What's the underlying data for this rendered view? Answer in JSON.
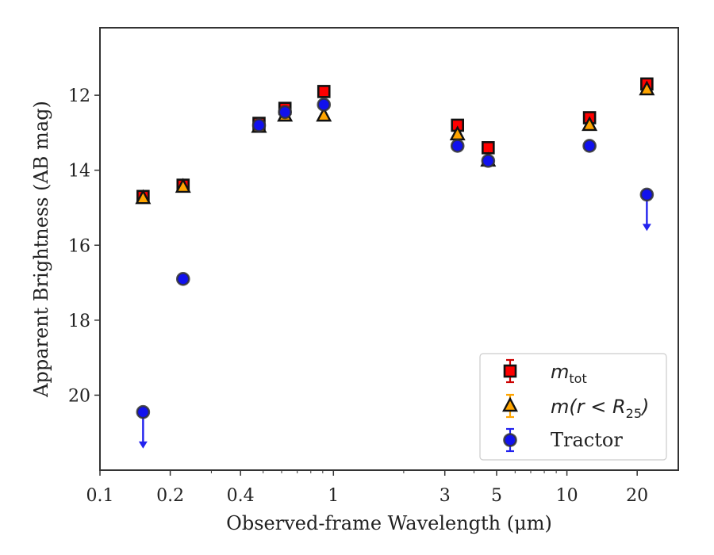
{
  "chart_data": {
    "type": "scatter",
    "xlabel": "Observed-frame Wavelength (μm)",
    "ylabel": "Apparent Brightness (AB mag)",
    "x_scale": "log",
    "y_inverted": true,
    "xlim": [
      0.1,
      30
    ],
    "ylim": [
      22,
      10.2
    ],
    "x_ticks": [
      0.1,
      0.2,
      0.4,
      1,
      3,
      5,
      10,
      20
    ],
    "x_tick_labels": [
      "0.1",
      "0.2",
      "0.4",
      "1",
      "3",
      "5",
      "10",
      "20"
    ],
    "y_ticks": [
      12,
      14,
      16,
      18,
      20
    ],
    "y_tick_labels": [
      "12",
      "14",
      "16",
      "18",
      "20"
    ],
    "legend_position": "lower-right",
    "series": [
      {
        "name": "m_tot",
        "legend_label": "m",
        "legend_sub": "tot",
        "marker": "square",
        "color": "#ff0000",
        "edge": "#111111",
        "x": [
          0.153,
          0.227,
          0.48,
          0.62,
          0.91,
          3.4,
          4.6,
          12.5,
          22.0
        ],
        "y": [
          14.7,
          14.4,
          12.75,
          12.35,
          11.9,
          12.8,
          13.4,
          12.6,
          11.7
        ]
      },
      {
        "name": "m(r < R25)",
        "legend_label": "m(r < R",
        "legend_sub": "25",
        "legend_suffix": ")",
        "marker": "triangle",
        "color": "#ffa500",
        "edge": "#111111",
        "x": [
          0.153,
          0.227,
          0.48,
          0.62,
          0.91,
          3.4,
          4.6,
          12.5,
          22.0
        ],
        "y": [
          14.75,
          14.45,
          12.85,
          12.55,
          12.55,
          13.05,
          13.75,
          12.8,
          11.85
        ]
      },
      {
        "name": "Tractor",
        "legend_label": "Tractor",
        "marker": "circle",
        "color": "#1111ee",
        "edge": "#333333",
        "x": [
          0.153,
          0.227,
          0.48,
          0.62,
          0.91,
          3.4,
          4.6,
          12.5,
          22.0
        ],
        "y": [
          20.45,
          16.9,
          12.8,
          12.45,
          12.25,
          13.35,
          13.75,
          13.35,
          14.65
        ],
        "upper_limits": [
          true,
          false,
          false,
          false,
          false,
          false,
          false,
          false,
          true
        ]
      }
    ]
  }
}
